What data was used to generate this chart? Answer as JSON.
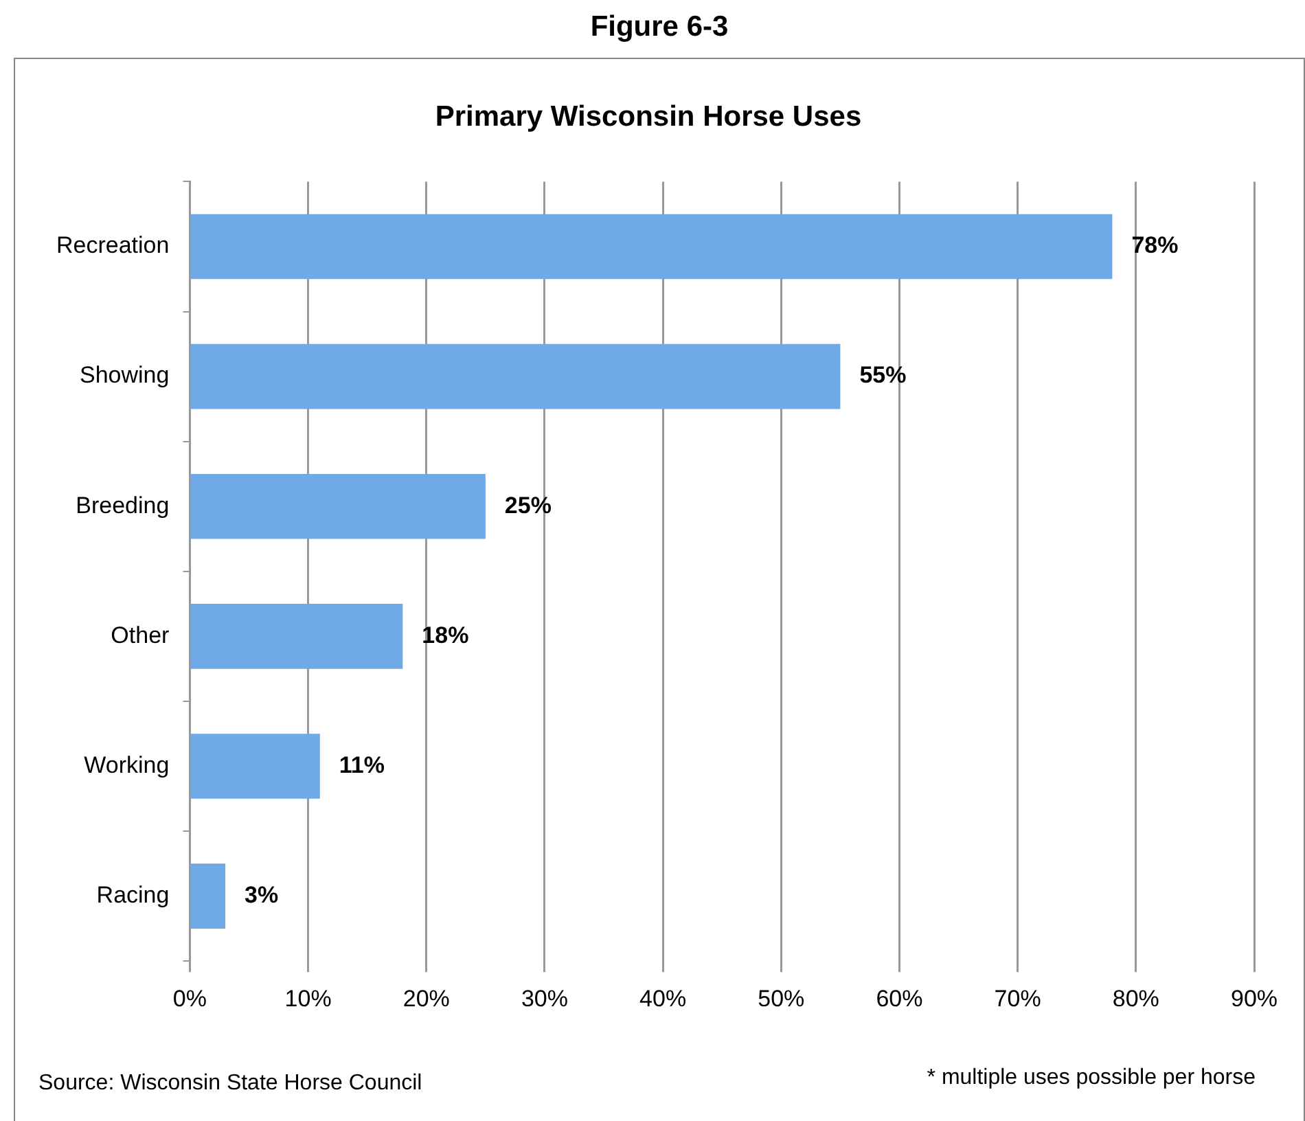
{
  "chart_data": {
    "type": "bar",
    "orientation": "horizontal",
    "title": "Figure 6-3",
    "subtitle": "Primary Wisconsin Horse Uses",
    "categories": [
      "Recreation",
      "Showing",
      "Breeding",
      "Other",
      "Working",
      "Racing"
    ],
    "values": [
      78,
      55,
      25,
      18,
      11,
      3
    ],
    "value_labels": [
      "78%",
      "55%",
      "25%",
      "18%",
      "11%",
      "3%"
    ],
    "color": "#6fa9e6",
    "xlim": [
      0,
      90
    ],
    "xticks": [
      {
        "value": 0,
        "label": "0%"
      },
      {
        "value": 10,
        "label": "10%"
      },
      {
        "value": 20,
        "label": "20%"
      },
      {
        "value": 30,
        "label": "30%"
      },
      {
        "value": 40,
        "label": "40%"
      },
      {
        "value": 50,
        "label": "50%"
      },
      {
        "value": 60,
        "label": "60%"
      },
      {
        "value": 70,
        "label": "70%"
      },
      {
        "value": 80,
        "label": "80%"
      },
      {
        "value": 90,
        "label": "90%"
      }
    ],
    "grid": "x",
    "annotations": [
      "Source: Wisconsin State Horse Council",
      "* multiple uses possible per horse"
    ]
  }
}
